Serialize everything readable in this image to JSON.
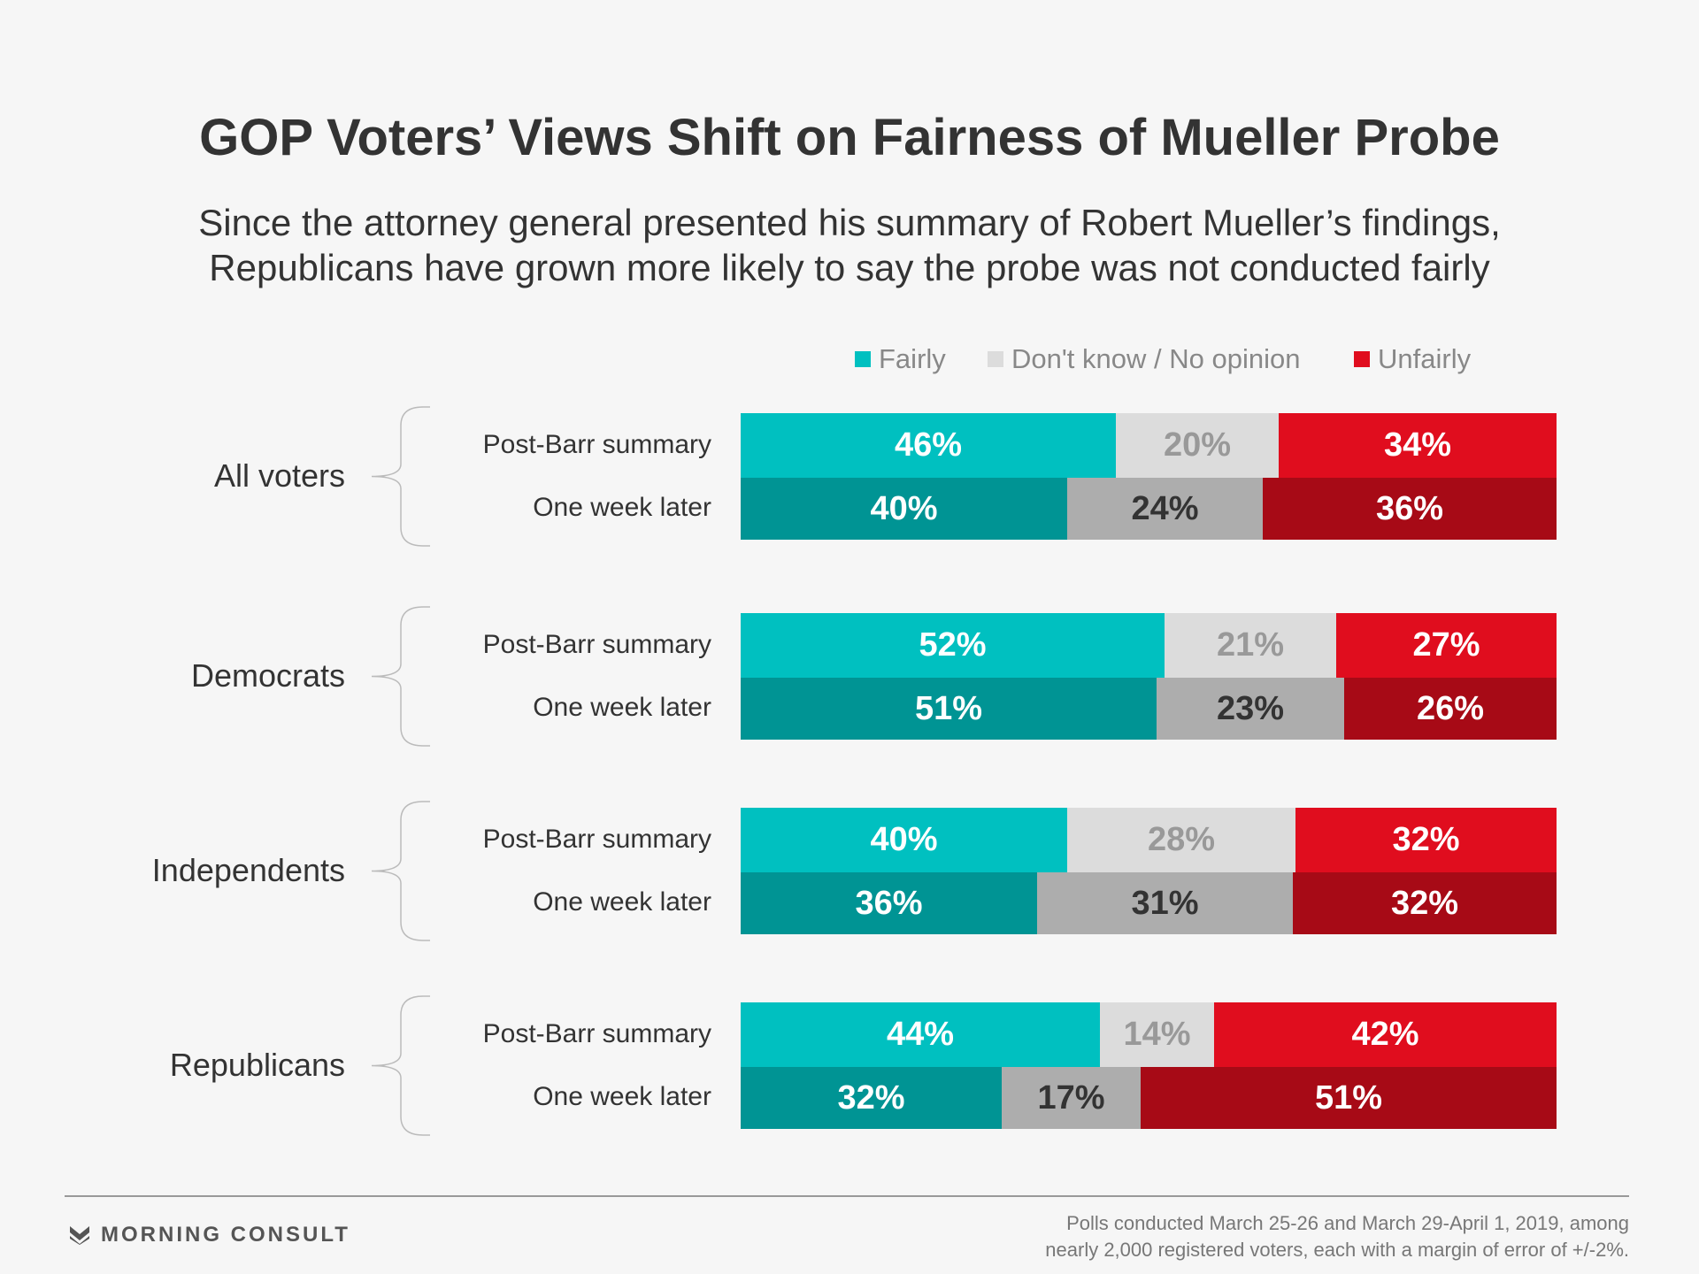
{
  "title": "GOP Voters’ Views Shift on Fairness of Mueller Probe",
  "subtitle_lines": [
    "Since the attorney general presented his summary of Robert Mueller’s findings,",
    "Republicans have grown more likely to say the probe was not conducted fairly"
  ],
  "brand": "MORNING CONSULT",
  "brand_icon": "morning-consult-logo-icon",
  "source_lines": [
    "Polls conducted March 25-26 and March 29-April 1, 2019, among",
    "nearly 2,000 registered voters, each with a margin of error of +/-2%."
  ],
  "colors": {
    "fairly": "#00c0c0",
    "fairly_later": "#009494",
    "dont_know": "#dcdcdc",
    "dont_know_later": "#adadad",
    "unfairly": "#e00d1e",
    "unfairly_later": "#a70a16",
    "label_on_light": "#999999",
    "label_on_gray": "#333333",
    "label_on_dark": "#ffffff"
  },
  "chart_data": {
    "type": "bar",
    "orientation": "horizontal",
    "stacked": "100%",
    "legend": [
      "Fairly",
      "Don't know / No opinion",
      "Unfairly"
    ],
    "legend_position": "top-right",
    "grid": false,
    "xlim": [
      0,
      100
    ],
    "groups": [
      {
        "name": "All voters",
        "rows": [
          {
            "label": "Post-Barr summary",
            "values": [
              46,
              20,
              34
            ],
            "labels": [
              "46%",
              "20%",
              "34%"
            ]
          },
          {
            "label": "One week later",
            "values": [
              40,
              24,
              36
            ],
            "labels": [
              "40%",
              "24%",
              "36%"
            ]
          }
        ]
      },
      {
        "name": "Democrats",
        "rows": [
          {
            "label": "Post-Barr summary",
            "values": [
              52,
              21,
              27
            ],
            "labels": [
              "52%",
              "21%",
              "27%"
            ]
          },
          {
            "label": "One week later",
            "values": [
              51,
              23,
              26
            ],
            "labels": [
              "51%",
              "23%",
              "26%"
            ]
          }
        ]
      },
      {
        "name": "Independents",
        "rows": [
          {
            "label": "Post-Barr summary",
            "values": [
              40,
              28,
              32
            ],
            "labels": [
              "40%",
              "28%",
              "32%"
            ]
          },
          {
            "label": "One week later",
            "values": [
              36,
              31,
              32
            ],
            "labels": [
              "36%",
              "31%",
              "32%"
            ]
          }
        ]
      },
      {
        "name": "Republicans",
        "rows": [
          {
            "label": "Post-Barr summary",
            "values": [
              44,
              14,
              42
            ],
            "labels": [
              "44%",
              "14%",
              "42%"
            ]
          },
          {
            "label": "One week later",
            "values": [
              32,
              17,
              51
            ],
            "labels": [
              "32%",
              "17%",
              "51%"
            ]
          }
        ]
      }
    ]
  }
}
